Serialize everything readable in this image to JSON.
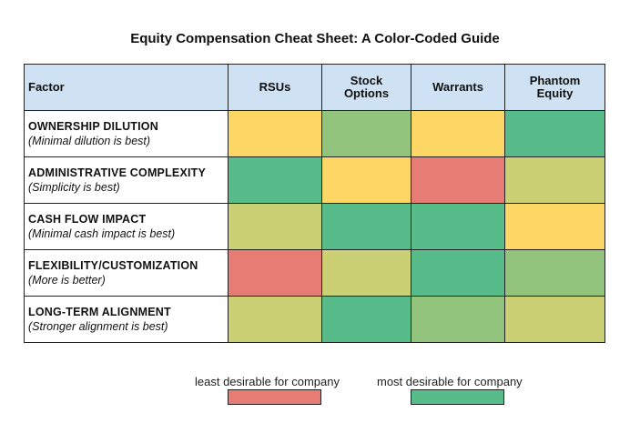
{
  "title": "Equity Compensation Cheat Sheet: A Color-Coded Guide",
  "header": {
    "factor": "Factor",
    "columns": [
      "RSUs",
      "Stock Options",
      "Warrants",
      "Phantom Equity"
    ]
  },
  "rows": [
    {
      "name": "OWNERSHIP DILUTION",
      "note": "(Minimal dilution is best)",
      "ratings": [
        "yellow",
        "lightgreen",
        "yellow",
        "green"
      ]
    },
    {
      "name": "ADMINISTRATIVE COMPLEXITY",
      "note": "(Simplicity is best)",
      "ratings": [
        "green",
        "yellow",
        "red",
        "olive"
      ]
    },
    {
      "name": "CASH FLOW IMPACT",
      "note": "(Minimal cash impact is best)",
      "ratings": [
        "olive",
        "green",
        "green",
        "yellow"
      ]
    },
    {
      "name": "FLEXIBILITY/CUSTOMIZATION",
      "note": "(More is better)",
      "ratings": [
        "red",
        "olive",
        "green",
        "lightgreen"
      ]
    },
    {
      "name": "LONG-TERM ALIGNMENT",
      "note": "(Stronger alignment is best)",
      "ratings": [
        "olive",
        "green",
        "lightgreen",
        "olive"
      ]
    }
  ],
  "colors": {
    "green": "#57bb8a",
    "lightgreen": "#93c47d",
    "olive": "#cbd074",
    "yellow": "#fcd766",
    "red": "#e67c73",
    "header_bg": "#cfe2f3"
  },
  "legend": {
    "least": "least desirable for company",
    "most": "most desirable for company"
  }
}
